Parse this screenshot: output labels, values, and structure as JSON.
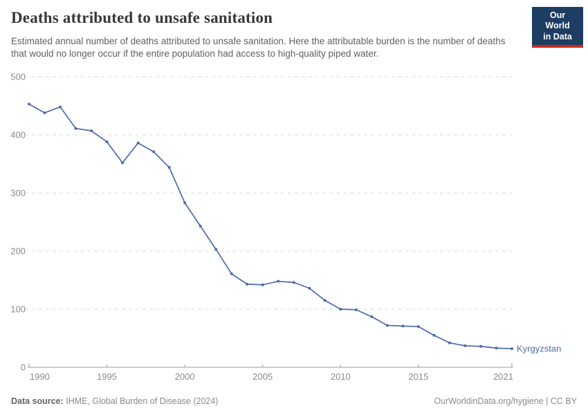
{
  "header": {
    "title": "Deaths attributed to unsafe sanitation",
    "subtitle": "Estimated annual number of deaths attributed to unsafe sanitation. Here the attributable burden is the number of deaths that would no longer occur if the entire population had access to high-quality piped water."
  },
  "logo": {
    "line1": "Our World",
    "line2": "in Data"
  },
  "footer": {
    "source_label": "Data source:",
    "source_value": "IHME, Global Burden of Disease (2024)",
    "credit": "OurWorldinData.org/hygiene | CC BY"
  },
  "colors": {
    "series_line": "#4C6BAB",
    "series_label": "#4C6BAB",
    "grid": "#dcdcdc",
    "axis": "#9e9e9e",
    "tick_label": "#8a8a8a",
    "logo_bg": "#1d3d63",
    "logo_accent": "#d0281e"
  },
  "chart_data": {
    "type": "line",
    "title": "Deaths attributed to unsafe sanitation",
    "xlabel": "",
    "ylabel": "",
    "grid": "horizontal-dashed",
    "legend_position": "end-of-line-label",
    "ylim": [
      0,
      500
    ],
    "yticks": [
      0,
      100,
      200,
      300,
      400,
      500
    ],
    "xticks": [
      1990,
      1995,
      2000,
      2005,
      2010,
      2015,
      2021
    ],
    "x": [
      1990,
      1991,
      1992,
      1993,
      1994,
      1995,
      1996,
      1997,
      1998,
      1999,
      2000,
      2001,
      2002,
      2003,
      2004,
      2005,
      2006,
      2007,
      2008,
      2009,
      2010,
      2011,
      2012,
      2013,
      2014,
      2015,
      2016,
      2017,
      2018,
      2019,
      2020,
      2021
    ],
    "series": [
      {
        "name": "Kyrgyzstan",
        "values": [
          453,
          438,
          448,
          411,
          407,
          388,
          352,
          386,
          371,
          344,
          283,
          243,
          203,
          161,
          143,
          142,
          148,
          146,
          136,
          115,
          100,
          99,
          87,
          72,
          71,
          70,
          55,
          42,
          37,
          36,
          33,
          32
        ]
      }
    ]
  }
}
